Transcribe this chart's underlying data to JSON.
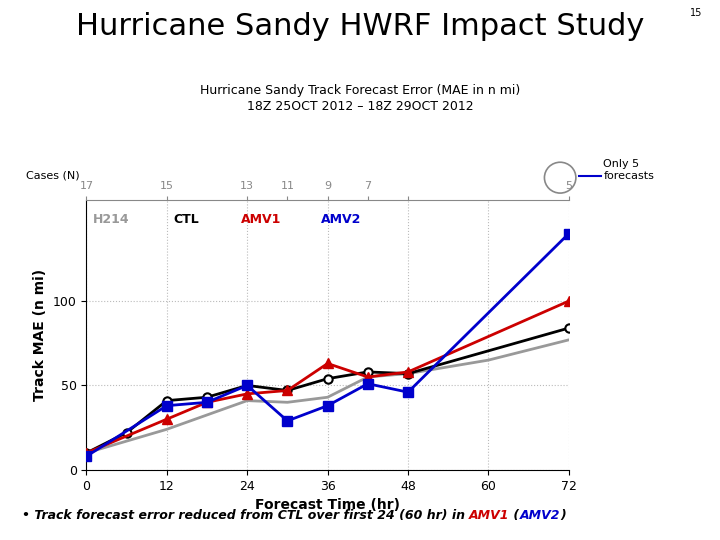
{
  "title_main": "Hurricane Sandy HWRF Impact Study",
  "title_slide": "15",
  "subtitle1": "Hurricane Sandy Track Forecast Error (MAE in n mi)",
  "subtitle2": "18Z 25OCT 2012 – 18Z 29OCT 2012",
  "xlabel": "Forecast Time (hr)",
  "ylabel": "Track MAE (n mi)",
  "cases_label": "Cases (N)",
  "top_tick_x": [
    0,
    12,
    24,
    30,
    36,
    42,
    48,
    72
  ],
  "top_tick_labels": [
    "17",
    "15",
    "13",
    "11",
    "9",
    "7",
    "",
    "5"
  ],
  "x_ticks": [
    0,
    12,
    24,
    36,
    48,
    60,
    72
  ],
  "ylim": [
    0,
    160
  ],
  "yticks": [
    0,
    50,
    100
  ],
  "only5_text": "Only 5\nforecasts",
  "H214": {
    "label": "H214",
    "color": "#999999",
    "x": [
      0,
      12,
      24,
      30,
      36,
      42,
      48,
      60,
      72
    ],
    "y": [
      10,
      24,
      41,
      40,
      43,
      55,
      57,
      65,
      77
    ]
  },
  "CTL": {
    "label": "CTL",
    "color": "#000000",
    "marker": "o",
    "x": [
      0,
      6,
      12,
      18,
      24,
      30,
      36,
      42,
      48,
      72
    ],
    "y": [
      10,
      22,
      41,
      43,
      50,
      47,
      54,
      58,
      57,
      84
    ]
  },
  "AMV1": {
    "label": "AMV1",
    "color": "#cc0000",
    "marker": "^",
    "x": [
      0,
      12,
      18,
      24,
      30,
      36,
      42,
      48,
      72
    ],
    "y": [
      10,
      30,
      40,
      45,
      47,
      63,
      55,
      58,
      100
    ]
  },
  "AMV2": {
    "label": "AMV2",
    "color": "#0000cc",
    "marker": "s",
    "x": [
      0,
      12,
      18,
      24,
      30,
      36,
      42,
      48,
      72
    ],
    "y": [
      8,
      38,
      40,
      50,
      29,
      38,
      51,
      46,
      140
    ]
  },
  "footnote_parts": [
    {
      "text": "• Track forecast error reduced from CTL over first 24 (60 hr) in ",
      "color": "#000000"
    },
    {
      "text": "AMV1",
      "color": "#cc0000"
    },
    {
      "text": " (",
      "color": "#000000"
    },
    {
      "text": "AMV2",
      "color": "#0000cc"
    },
    {
      "text": ")",
      "color": "#000000"
    }
  ],
  "bg_color": "#ffffff",
  "plot_bg": "#ffffff",
  "grid_color": "#bbbbbb"
}
